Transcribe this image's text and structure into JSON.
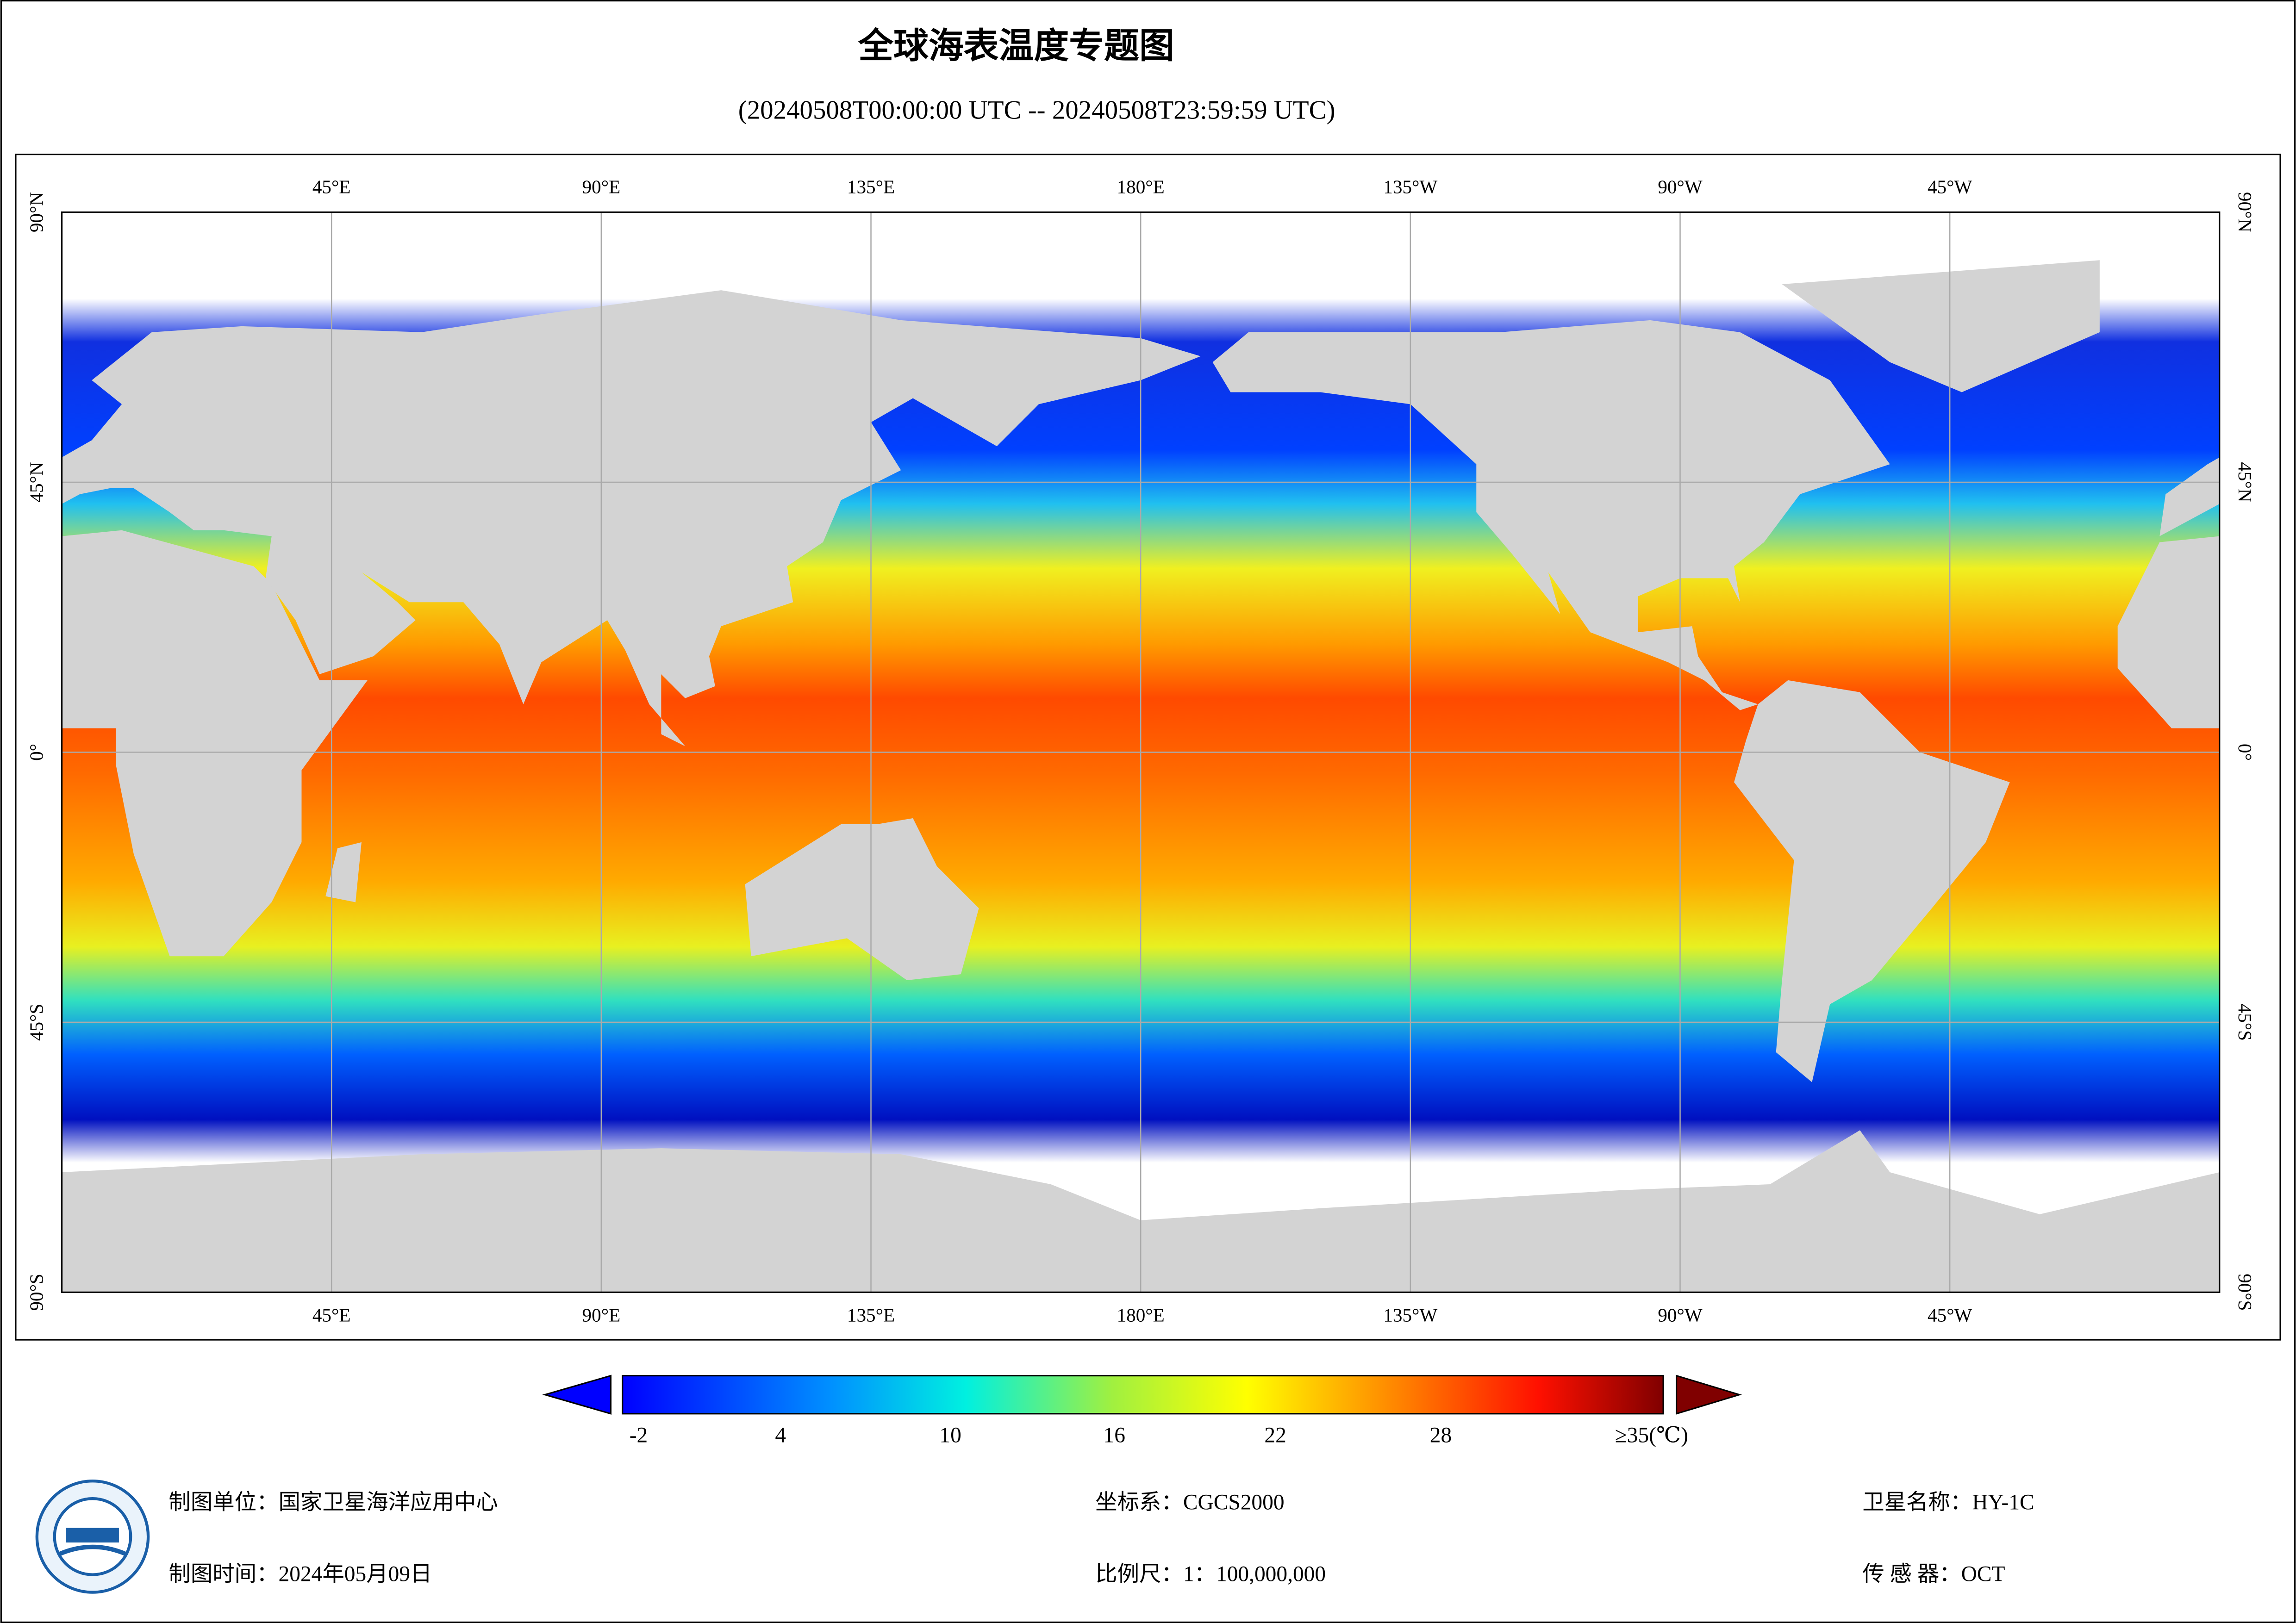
{
  "header": {
    "title": "全球海表温度专题图",
    "subtitle": "(20240508T00:00:00 UTC -- 20240508T23:59:59 UTC)"
  },
  "map": {
    "lon_labels": [
      "45°E",
      "90°E",
      "135°E",
      "180°E",
      "135°W",
      "90°W",
      "45°W"
    ],
    "lat_labels": [
      "90°N",
      "45°N",
      "0°",
      "45°S",
      "90°S"
    ]
  },
  "colorbar": {
    "labels": [
      "-2",
      "4",
      "10",
      "16",
      "22",
      "28",
      "≥35(℃)"
    ]
  },
  "footer": {
    "unit": "制图单位：国家卫星海洋应用中心",
    "date": "制图时间：2024年05月09日",
    "crs": "坐标系：CGCS2000",
    "scale": "比例尺：1：100,000,000",
    "satellite": "卫星名称：HY-1C",
    "sensor": "传 感 器：OCT"
  }
}
